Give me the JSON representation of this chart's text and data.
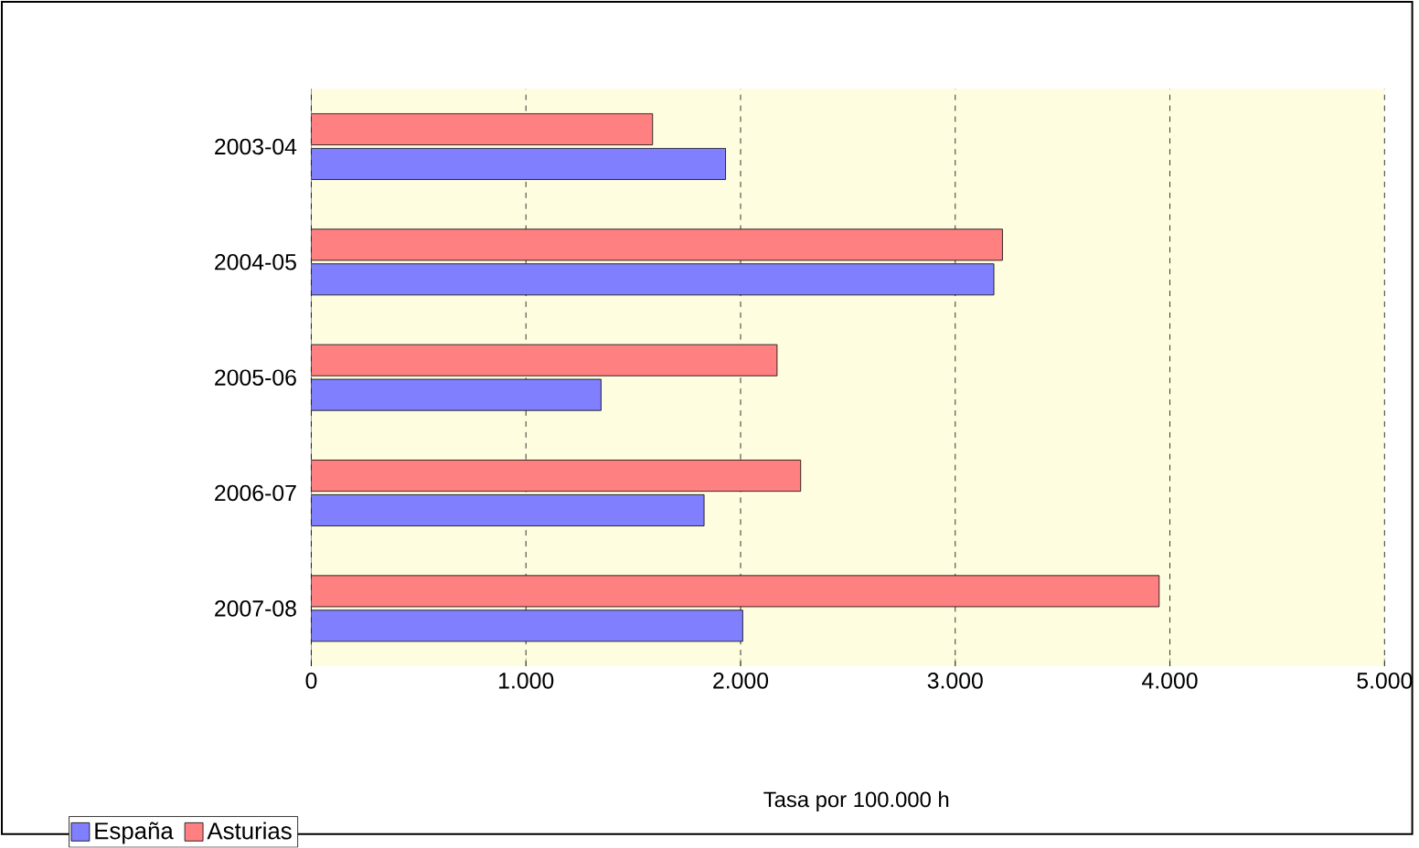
{
  "chart_data": {
    "type": "bar",
    "orientation": "horizontal",
    "annotations": [
      "Tasa por 100.000 h"
    ],
    "categories": [
      "2003-04",
      "2004-05",
      "2005-06",
      "2006-07",
      "2007-08"
    ],
    "series": [
      {
        "name": "España",
        "color": "#8080ff",
        "values": [
          1930,
          3180,
          1350,
          1830,
          2010
        ]
      },
      {
        "name": "Asturias",
        "color": "#ff8080",
        "values": [
          1590,
          3220,
          2170,
          2280,
          3950
        ]
      }
    ],
    "xlim": [
      0,
      5000
    ],
    "xticks": [
      0,
      {
        "value": 1000,
        "label": "1.000"
      },
      {
        "value": 2000,
        "label": "2.000"
      },
      {
        "value": 3000,
        "label": "3.000"
      },
      {
        "value": 4000,
        "label": "4.000"
      },
      {
        "value": 5000,
        "label": "5.000"
      }
    ],
    "grid": "x",
    "legend": "bottom left"
  }
}
